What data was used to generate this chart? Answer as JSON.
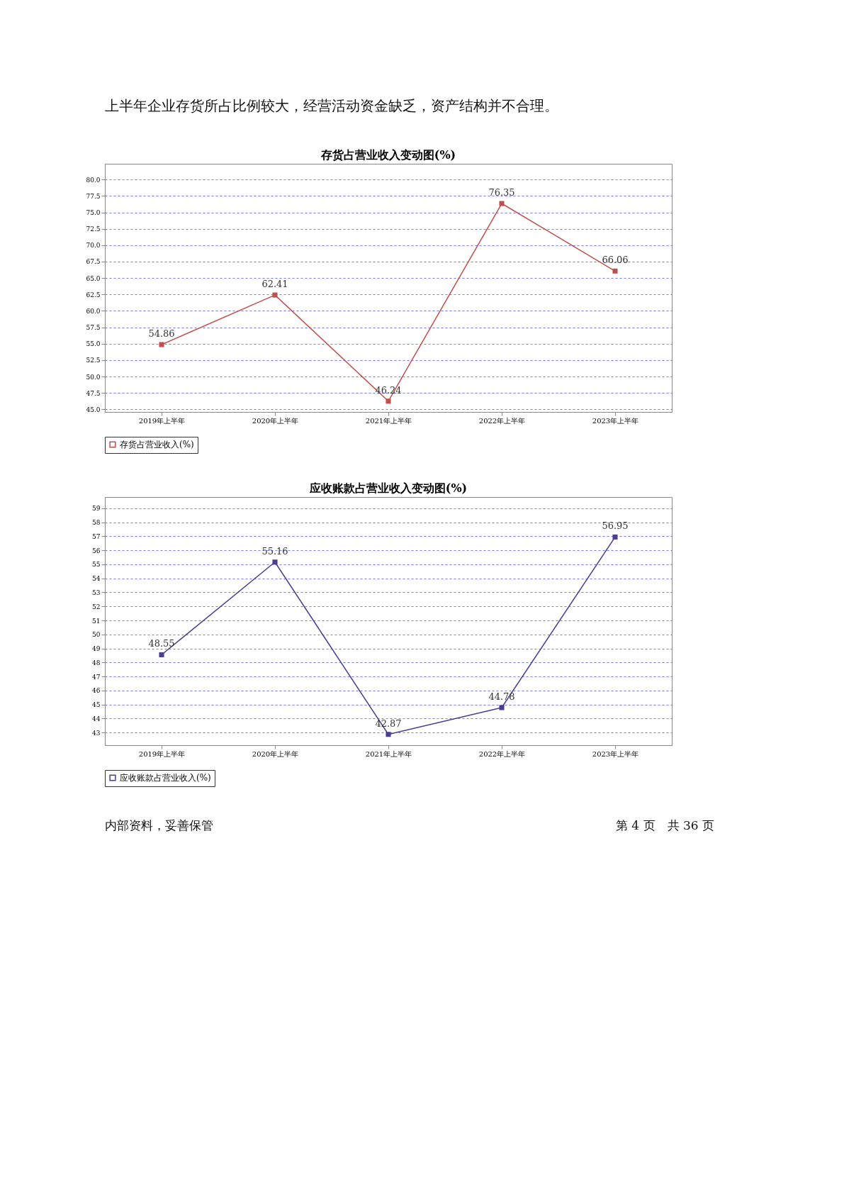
{
  "chart_data": [
    {
      "type": "line",
      "title": "存货占营业收入变动图(%)",
      "annotations": [
        "上半年企业存货所占比例较大，经营活动资金缺乏，资产结构并不合理。"
      ],
      "categories": [
        "2019年上半年",
        "2020年上半年",
        "2021年上半年",
        "2022年上半年",
        "2023年上半年"
      ],
      "series": [
        {
          "name": "存货占营业收入(%)",
          "color": "#c0504d",
          "values": [
            54.86,
            62.41,
            46.24,
            76.35,
            66.06
          ]
        }
      ],
      "ylim": [
        44.6,
        82.4
      ],
      "yticks": [
        {
          "value": 45,
          "label": "45.0"
        },
        47.5,
        {
          "value": 50,
          "label": "50.0"
        },
        52.5,
        {
          "value": 55,
          "label": "55.0"
        },
        57.5,
        {
          "value": 60,
          "label": "60.0"
        },
        62.5,
        {
          "value": 65,
          "label": "65.0"
        },
        67.5,
        {
          "value": 70,
          "label": "70.0"
        },
        72.5,
        {
          "value": 75,
          "label": "75.0"
        },
        77.5,
        {
          "value": 80,
          "label": "80.0"
        }
      ],
      "grid": "y",
      "legend": "bottom",
      "marker": "square",
      "line_style": "solid",
      "data_labels": true
    },
    {
      "type": "line",
      "title": "应收账款占营业收入变动图(%)",
      "annotations": [
        "内部资料，妥善保管",
        "第 4 页　共 36 页"
      ],
      "categories": [
        "2019年上半年",
        "2020年上半年",
        "2021年上半年",
        "2022年上半年",
        "2023年上半年"
      ],
      "series": [
        {
          "name": "应收账款占营业收入(%)",
          "color": "#4b3d8f",
          "values": [
            48.55,
            55.16,
            42.87,
            44.78,
            56.95
          ]
        }
      ],
      "ylim": [
        42.1,
        59.8
      ],
      "yticks": [
        43,
        44,
        45,
        46,
        47,
        48,
        49,
        50,
        51,
        52,
        53,
        54,
        55,
        56,
        57,
        58,
        59
      ],
      "grid": "y",
      "legend": "bottom",
      "marker": "square",
      "line_style": "solid",
      "data_labels": true
    }
  ]
}
